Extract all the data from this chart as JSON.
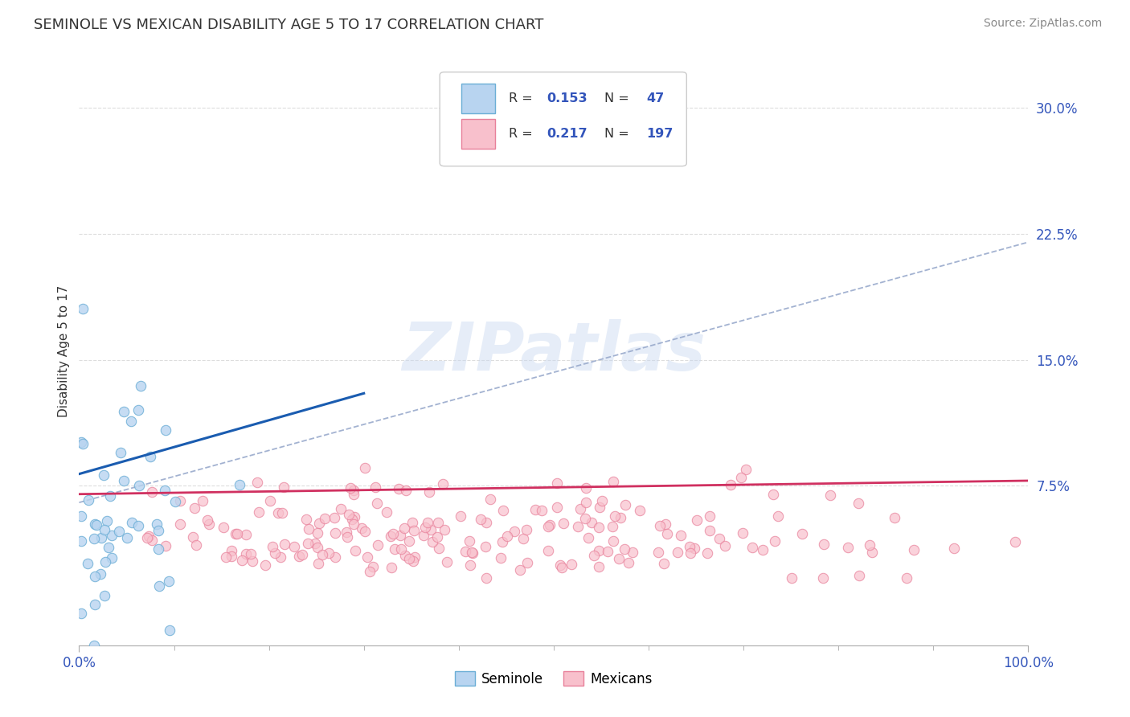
{
  "title": "SEMINOLE VS MEXICAN DISABILITY AGE 5 TO 17 CORRELATION CHART",
  "source": "Source: ZipAtlas.com",
  "ylabel": "Disability Age 5 to 17",
  "yticks": [
    0.075,
    0.15,
    0.225,
    0.3
  ],
  "ytick_labels": [
    "7.5%",
    "15.0%",
    "22.5%",
    "30.0%"
  ],
  "xlim": [
    0.0,
    1.0
  ],
  "ylim": [
    -0.02,
    0.33
  ],
  "seminole_R": 0.153,
  "seminole_N": 47,
  "mexican_R": 0.217,
  "mexican_N": 197,
  "seminole_dot_face": "#b8d4f0",
  "seminole_dot_edge": "#6baed6",
  "mexican_dot_face": "#f8c0cc",
  "mexican_dot_edge": "#e8809a",
  "trend_seminole_color": "#1a5cb0",
  "trend_mexican_color": "#d03060",
  "trend_gray_color": "#99aacc",
  "watermark_text": "ZIPatlas",
  "stat_color": "#3355bb",
  "background_color": "#ffffff",
  "grid_color": "#dddddd",
  "seminole_seed": 7,
  "mexican_seed": 42,
  "title_fontsize": 13,
  "source_fontsize": 10,
  "tick_fontsize": 12,
  "ylabel_fontsize": 11
}
